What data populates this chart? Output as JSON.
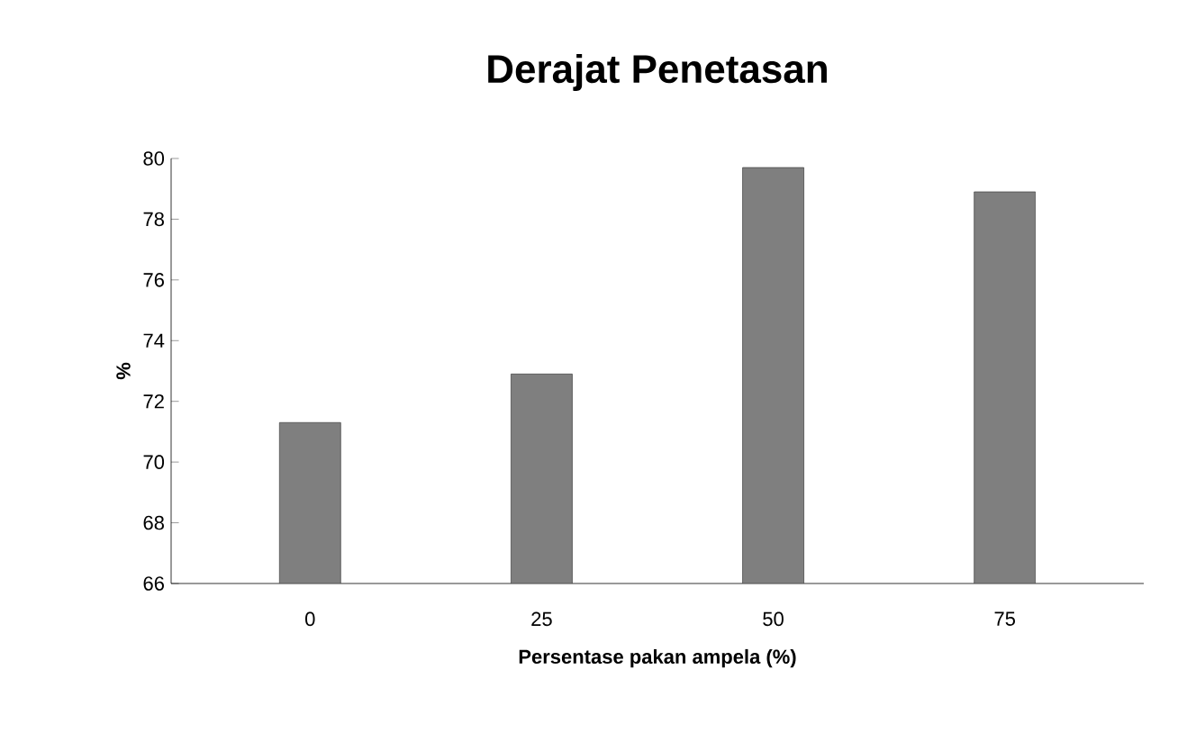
{
  "chart_data": {
    "type": "bar",
    "title": "Derajat Penetasan",
    "xlabel": "Persentase pakan ampela (%)",
    "ylabel": "%",
    "categories": [
      "0",
      "25",
      "50",
      "75"
    ],
    "values": [
      71.3,
      72.9,
      79.7,
      78.9
    ],
    "color": "#7f7f7f",
    "ylim": [
      66,
      80
    ],
    "yticks": [
      66,
      68,
      70,
      72,
      74,
      76,
      78,
      80
    ],
    "grid": false
  }
}
